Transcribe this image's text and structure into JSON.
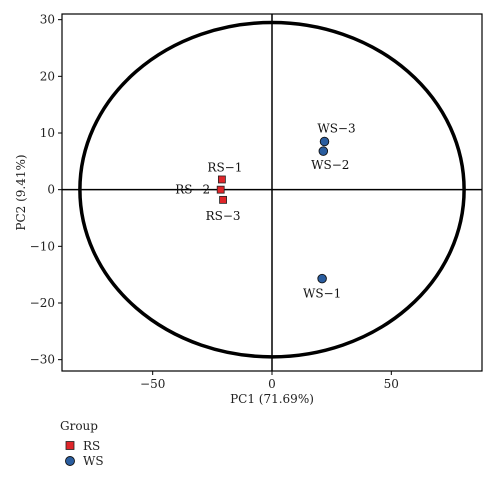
{
  "chart_data": {
    "type": "scatter",
    "xlabel": "PC1 (71.69%)",
    "ylabel": "PC2 (9.41%)",
    "xlim": [
      -88,
      88
    ],
    "ylim": [
      -32,
      31
    ],
    "xticks": [
      -50,
      0,
      50
    ],
    "yticks": [
      -30,
      -20,
      -10,
      0,
      10,
      20,
      30
    ],
    "grid": false,
    "reference_lines": {
      "x": 0,
      "y": 0
    },
    "confidence_ellipse": {
      "center": [
        0,
        0
      ],
      "semi_axis_x": 80.5,
      "semi_axis_y": 29.5
    },
    "legend_title": "Group",
    "legend_placement": "bottom-left",
    "series": [
      {
        "name": "RS",
        "marker": "square",
        "color": "#e0262a",
        "points": [
          {
            "label": "RS-1",
            "x": -21,
            "y": 1.8
          },
          {
            "label": "RS-2",
            "x": -21.5,
            "y": 0
          },
          {
            "label": "RS-3",
            "x": -20.5,
            "y": -1.8
          }
        ]
      },
      {
        "name": "WS",
        "marker": "circle",
        "color": "#2a5d9f",
        "points": [
          {
            "label": "WS-1",
            "x": 21,
            "y": -15.7
          },
          {
            "label": "WS-2",
            "x": 21.5,
            "y": 6.8
          },
          {
            "label": "WS-3",
            "x": 22,
            "y": 8.5
          }
        ]
      }
    ]
  }
}
